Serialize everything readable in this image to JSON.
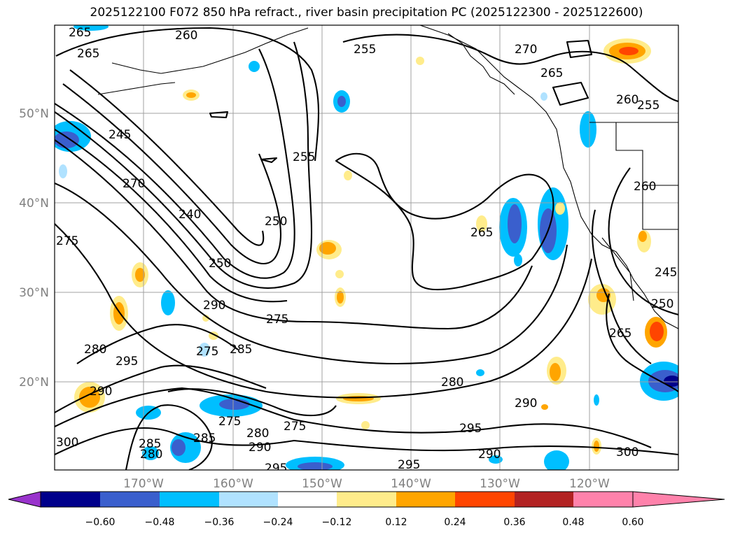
{
  "title": "2025122100 F072 850 hPa refract., river basin precipitation PC (2025122300 - 2025122600)",
  "map": {
    "lat_labels": [
      "50°N",
      "40°N",
      "30°N",
      "20°N"
    ],
    "lon_labels": [
      "170°W",
      "160°W",
      "150°W",
      "140°W",
      "130°W",
      "120°W"
    ],
    "contour_labels": [
      {
        "text": "265"
      },
      {
        "text": "260"
      },
      {
        "text": "265"
      },
      {
        "text": "255"
      },
      {
        "text": "270"
      },
      {
        "text": "265"
      },
      {
        "text": "260"
      },
      {
        "text": "255"
      },
      {
        "text": "245"
      },
      {
        "text": "255"
      },
      {
        "text": "270"
      },
      {
        "text": "240"
      },
      {
        "text": "250"
      },
      {
        "text": "260"
      },
      {
        "text": "275"
      },
      {
        "text": "265"
      },
      {
        "text": "250"
      },
      {
        "text": "275"
      },
      {
        "text": "290"
      },
      {
        "text": "275"
      },
      {
        "text": "245"
      },
      {
        "text": "250"
      },
      {
        "text": "280"
      },
      {
        "text": "265"
      },
      {
        "text": "295"
      },
      {
        "text": "285"
      },
      {
        "text": "290"
      },
      {
        "text": "280"
      },
      {
        "text": "275"
      },
      {
        "text": "280"
      },
      {
        "text": "290"
      },
      {
        "text": "275"
      },
      {
        "text": "300"
      },
      {
        "text": "285"
      },
      {
        "text": "290"
      },
      {
        "text": "295"
      },
      {
        "text": "290"
      },
      {
        "text": "300"
      },
      {
        "text": "280"
      },
      {
        "text": "295"
      },
      {
        "text": "285"
      },
      {
        "text": "295"
      }
    ]
  },
  "colorbar": {
    "ticks": [
      "−0.60",
      "−0.48",
      "−0.36",
      "−0.24",
      "−0.12",
      "0.12",
      "0.24",
      "0.36",
      "0.48",
      "0.60"
    ],
    "colors": [
      "#9933cc",
      "#00008b",
      "#3a5fcd",
      "#00bfff",
      "#b0e2ff",
      "#ffffff",
      "#ffec8b",
      "#ffa500",
      "#ff4500",
      "#b22222",
      "#ff82ab"
    ]
  }
}
